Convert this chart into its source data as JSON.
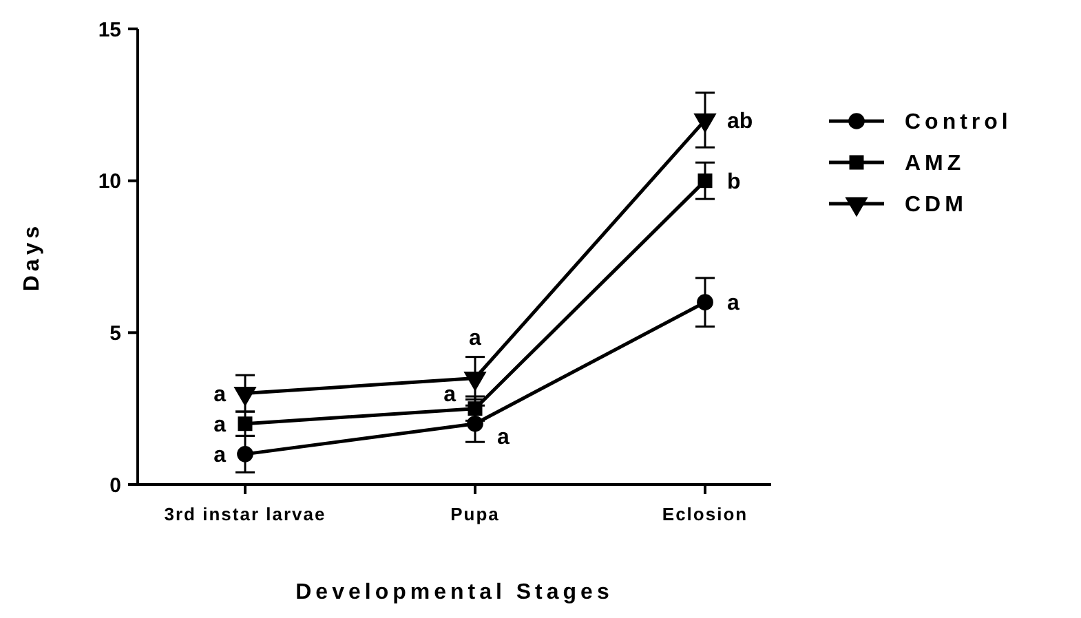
{
  "chart_data": {
    "type": "line",
    "xlabel": "Developmental Stages",
    "ylabel": "Days",
    "categories": [
      "3rd instar larvae",
      "Pupa",
      "Eclosion"
    ],
    "ylim": [
      0,
      15
    ],
    "yticks": [
      0,
      5,
      10,
      15
    ],
    "legend": "right",
    "grid": false,
    "line_style": "solid",
    "series": [
      {
        "name": "Control",
        "color": "#000000",
        "marker": "circle",
        "values": [
          1,
          2,
          6
        ],
        "errors": [
          0.6,
          0.6,
          0.8
        ]
      },
      {
        "name": "AMZ",
        "color": "#000000",
        "marker": "square",
        "values": [
          2,
          2.5,
          10
        ],
        "errors": [
          0.4,
          0.4,
          0.6
        ]
      },
      {
        "name": "CDM",
        "color": "#000000",
        "marker": "triangle",
        "values": [
          3,
          3.5,
          12
        ],
        "errors": [
          0.6,
          0.7,
          0.9
        ]
      }
    ],
    "annotations": [
      {
        "text": "a",
        "x": "3rd instar larvae",
        "y": 1
      },
      {
        "text": "a",
        "x": "3rd instar larvae",
        "y": 2
      },
      {
        "text": "a",
        "x": "3rd instar larvae",
        "y": 3
      },
      {
        "text": "a",
        "x": "Pupa",
        "y": 1.6
      },
      {
        "text": "a",
        "x": "Pupa",
        "y": 2.5
      },
      {
        "text": "a",
        "x": "Pupa",
        "y": 3.5
      },
      {
        "text": "a",
        "x": "Eclosion",
        "y": 6
      },
      {
        "text": "b",
        "x": "Eclosion",
        "y": 10
      },
      {
        "text": "ab",
        "x": "Eclosion",
        "y": 12
      }
    ]
  }
}
